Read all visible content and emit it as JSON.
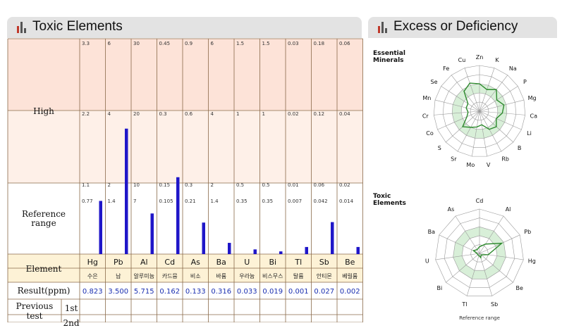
{
  "left_panel": {
    "title": "Toxic Elements",
    "row_labels": {
      "high": "High",
      "reference": "Reference range",
      "element": "Element",
      "result": "Result(ppm)",
      "previous": "Previous test",
      "first": "1st",
      "second": "2nd"
    }
  },
  "right_panel": {
    "title": "Excess or Deficiency"
  },
  "colors": {
    "high_band": "#fde3d8",
    "mid_band": "#fef0e8",
    "header_band": "#fdf2d6",
    "bar": "#1f16c8",
    "grid": "#8a6a4a",
    "result_text": "#1a2fb0",
    "radar_fill": "#d8efd8",
    "radar_line": "#2d8a2d"
  },
  "chart_data": [
    {
      "type": "bar",
      "title": "Toxic Elements",
      "categories": [
        "Hg",
        "Pb",
        "Al",
        "Cd",
        "As",
        "Ba",
        "U",
        "Bi",
        "Tl",
        "Sb",
        "Be"
      ],
      "korean_names": [
        "수은",
        "납",
        "알루미늄",
        "카드뮴",
        "비소",
        "바륨",
        "우라늄",
        "비스무스",
        "탈륨",
        "안티몬",
        "베릴륨"
      ],
      "values": [
        0.823,
        3.5,
        5.715,
        0.162,
        0.133,
        0.316,
        0.033,
        0.019,
        0.001,
        0.027,
        0.002
      ],
      "value_labels": [
        "0.823",
        "3.500",
        "5.715",
        "0.162",
        "0.133",
        "0.316",
        "0.033",
        "0.019",
        "0.001",
        "0.027",
        "0.002"
      ],
      "threshold_top": [
        "3.3",
        "6",
        "30",
        "0.45",
        "0.9",
        "6",
        "1.5",
        "1.5",
        "0.03",
        "0.18",
        "0.06"
      ],
      "threshold_high": [
        "2.2",
        "4",
        "20",
        "0.3",
        "0.6",
        "4",
        "1",
        "1",
        "0.02",
        "0.12",
        "0.04"
      ],
      "threshold_ref": [
        "1.1",
        "2",
        "10",
        "0.15",
        "0.3",
        "2",
        "0.5",
        "0.5",
        "0.01",
        "0.06",
        "0.02"
      ],
      "threshold_mid": [
        "0.77",
        "1.4",
        "7",
        "0.105",
        "0.21",
        "1.4",
        "0.35",
        "0.35",
        "0.007",
        "0.042",
        "0.014"
      ],
      "ylabel": ""
    },
    {
      "type": "radar",
      "title": "Essential Minerals",
      "categories": [
        "Zn",
        "K",
        "Na",
        "P",
        "Mg",
        "Ca",
        "Li",
        "B",
        "Rb",
        "V",
        "Mo",
        "Sr",
        "S",
        "Co",
        "Cr",
        "Mn",
        "Se",
        "Fe",
        "Cu"
      ],
      "values": [
        0.6,
        0.5,
        0.6,
        0.45,
        0.55,
        0.5,
        0.4,
        0.5,
        0.45,
        0.3,
        0.35,
        0.4,
        0.5,
        0.3,
        0.25,
        0.3,
        0.3,
        0.55,
        0.65
      ]
    },
    {
      "type": "radar",
      "title": "Toxic Elements",
      "categories": [
        "Cd",
        "Al",
        "Pb",
        "Hg",
        "Be",
        "Sb",
        "Tl",
        "Bi",
        "U",
        "Ba",
        "As"
      ],
      "values": [
        0.15,
        0.25,
        0.55,
        0.2,
        0.05,
        0.1,
        0.05,
        0.05,
        0.05,
        0.15,
        0.1
      ],
      "caption": "Reference range"
    }
  ]
}
